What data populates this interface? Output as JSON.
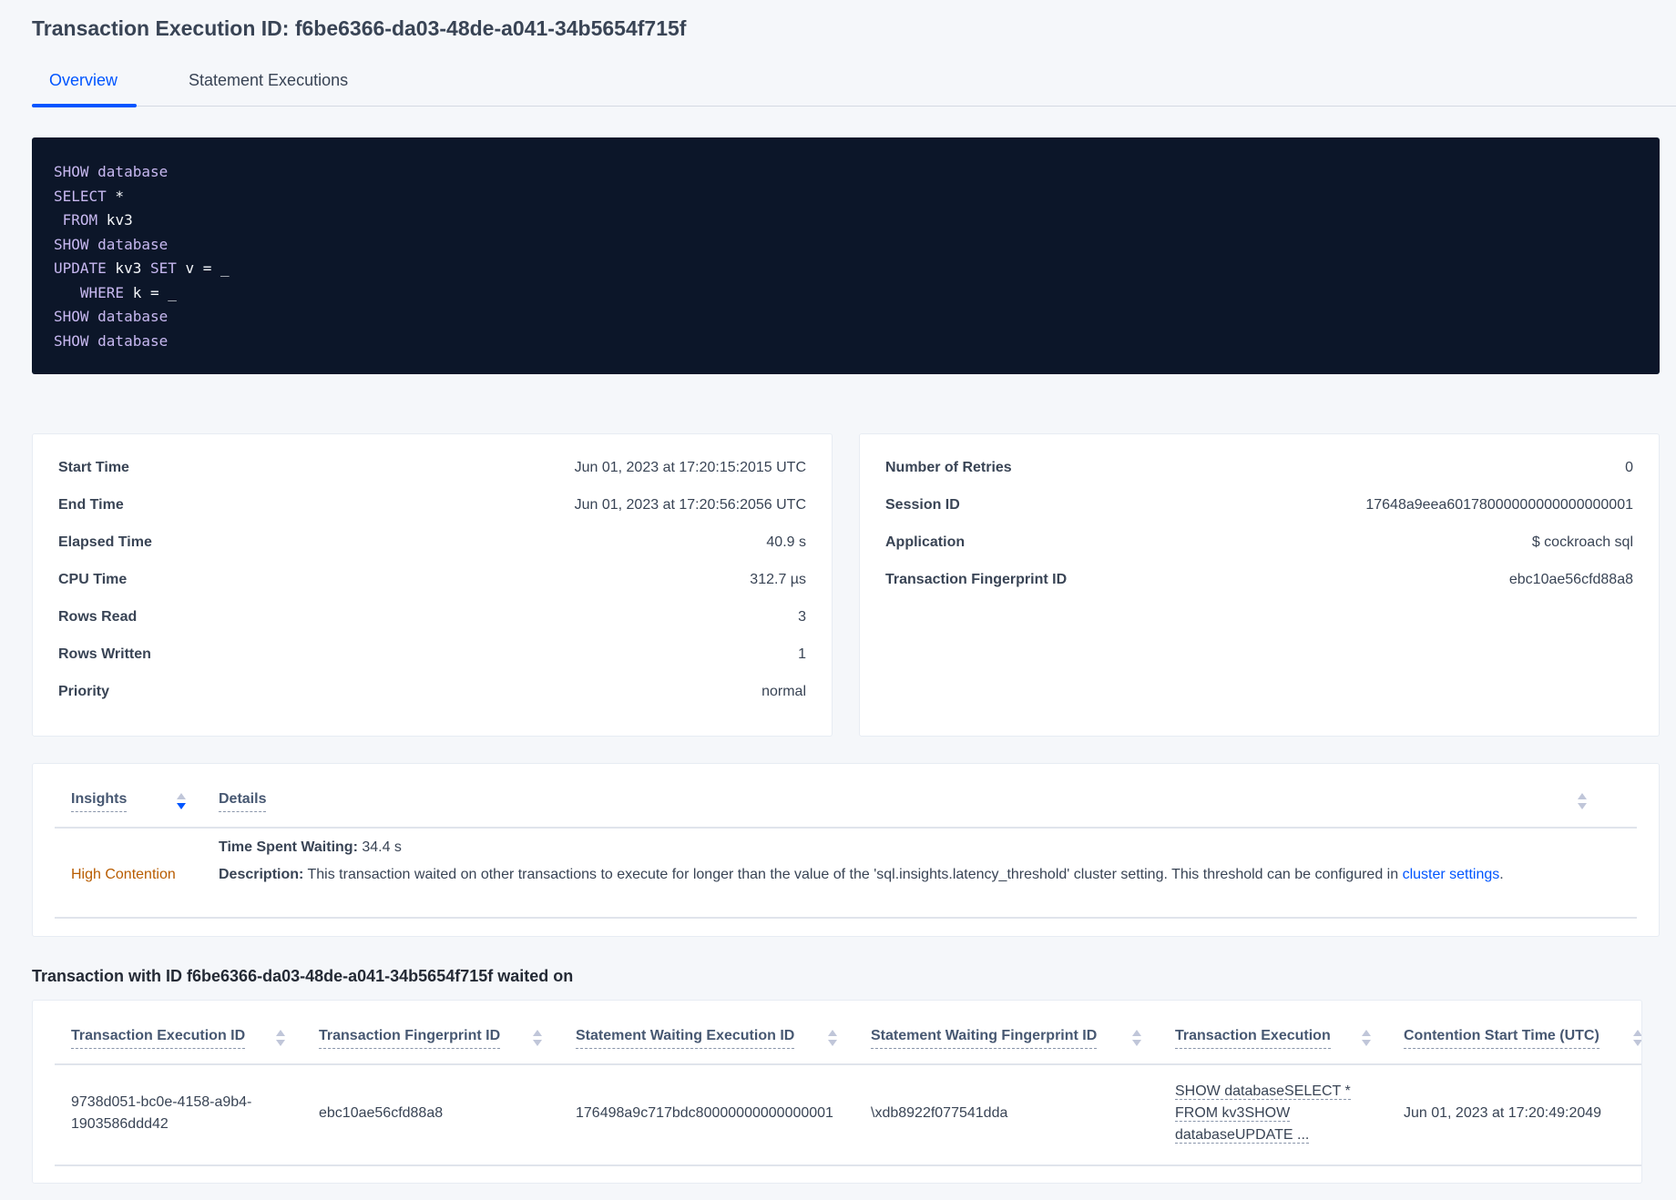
{
  "header": {
    "title": "Transaction Execution ID: f6be6366-da03-48de-a041-34b5654f715f"
  },
  "tabs": [
    {
      "label": "Overview",
      "active": true
    },
    {
      "label": "Statement Executions",
      "active": false
    }
  ],
  "sql": [
    [
      {
        "t": "SHOW",
        "k": true
      },
      {
        "t": " database",
        "k": true
      }
    ],
    [
      {
        "t": "SELECT",
        "k": true
      },
      {
        "t": " *",
        "k": false
      }
    ],
    [
      {
        "t": " FROM",
        "k": true
      },
      {
        "t": " kv3",
        "k": false
      }
    ],
    [
      {
        "t": "SHOW",
        "k": true
      },
      {
        "t": " database",
        "k": true
      }
    ],
    [
      {
        "t": "UPDATE",
        "k": true
      },
      {
        "t": " kv3 ",
        "k": false
      },
      {
        "t": "SET",
        "k": true
      },
      {
        "t": " v = _",
        "k": false
      }
    ],
    [
      {
        "t": "   WHERE",
        "k": true
      },
      {
        "t": " k = _",
        "k": false
      }
    ],
    [
      {
        "t": "SHOW",
        "k": true
      },
      {
        "t": " database",
        "k": true
      }
    ],
    [
      {
        "t": "SHOW",
        "k": true
      },
      {
        "t": " database",
        "k": true
      }
    ]
  ],
  "summary_left": [
    {
      "label": "Start Time",
      "value": "Jun 01, 2023 at 17:20:15:2015 UTC"
    },
    {
      "label": "End Time",
      "value": "Jun 01, 2023 at 17:20:56:2056 UTC"
    },
    {
      "label": "Elapsed Time",
      "value": "40.9 s"
    },
    {
      "label": "CPU Time",
      "value": "312.7 µs"
    },
    {
      "label": "Rows Read",
      "value": "3"
    },
    {
      "label": "Rows Written",
      "value": "1"
    },
    {
      "label": "Priority",
      "value": "normal"
    }
  ],
  "summary_right": [
    {
      "label": "Number of Retries",
      "value": "0"
    },
    {
      "label": "Session ID",
      "value": "17648a9eea60178000000000000000001"
    },
    {
      "label": "Application",
      "value": "$ cockroach sql"
    },
    {
      "label": "Transaction Fingerprint ID",
      "value": "ebc10ae56cfd88a8",
      "link": true
    }
  ],
  "insights": {
    "columns": [
      "Insights",
      "Details"
    ],
    "row": {
      "insight": "High Contention",
      "time_label": "Time Spent Waiting:",
      "time_value": " 34.4 s",
      "desc_label": "Description:",
      "desc_text": " This transaction waited on other transactions to execute for longer than the value of the 'sql.insights.latency_threshold' cluster setting. This threshold can be configured in ",
      "desc_link": "cluster settings",
      "desc_end": "."
    },
    "insight_color": "#b85c00"
  },
  "waited": {
    "heading": "Transaction with ID f6be6366-da03-48de-a041-34b5654f715f waited on",
    "columns": [
      "Transaction Execution ID",
      "Transaction Fingerprint ID",
      "Statement Waiting Execution ID",
      "Statement Waiting Fingerprint ID",
      "Transaction Execution",
      "Contention Start Time (UTC)"
    ],
    "rows": [
      {
        "txn_exec_id_1": "9738d051-bc0e-4158-a9b4-",
        "txn_exec_id_2": "1903586ddd42",
        "txn_fp": "ebc10ae56cfd88a8",
        "stmt_exec": "176498a9c717bdc80000000000000001",
        "stmt_fp": "\\xdb8922f077541dda",
        "txn_exec_1": "SHOW databaseSELECT *",
        "txn_exec_2": "FROM kv3SHOW",
        "txn_exec_3": "databaseUPDATE ...",
        "start": "Jun 01, 2023 at 17:20:49:2049"
      }
    ]
  },
  "colors": {
    "accent": "#0055ff",
    "code_bg": "#0c1629",
    "keyword": "#c7b8f0"
  }
}
